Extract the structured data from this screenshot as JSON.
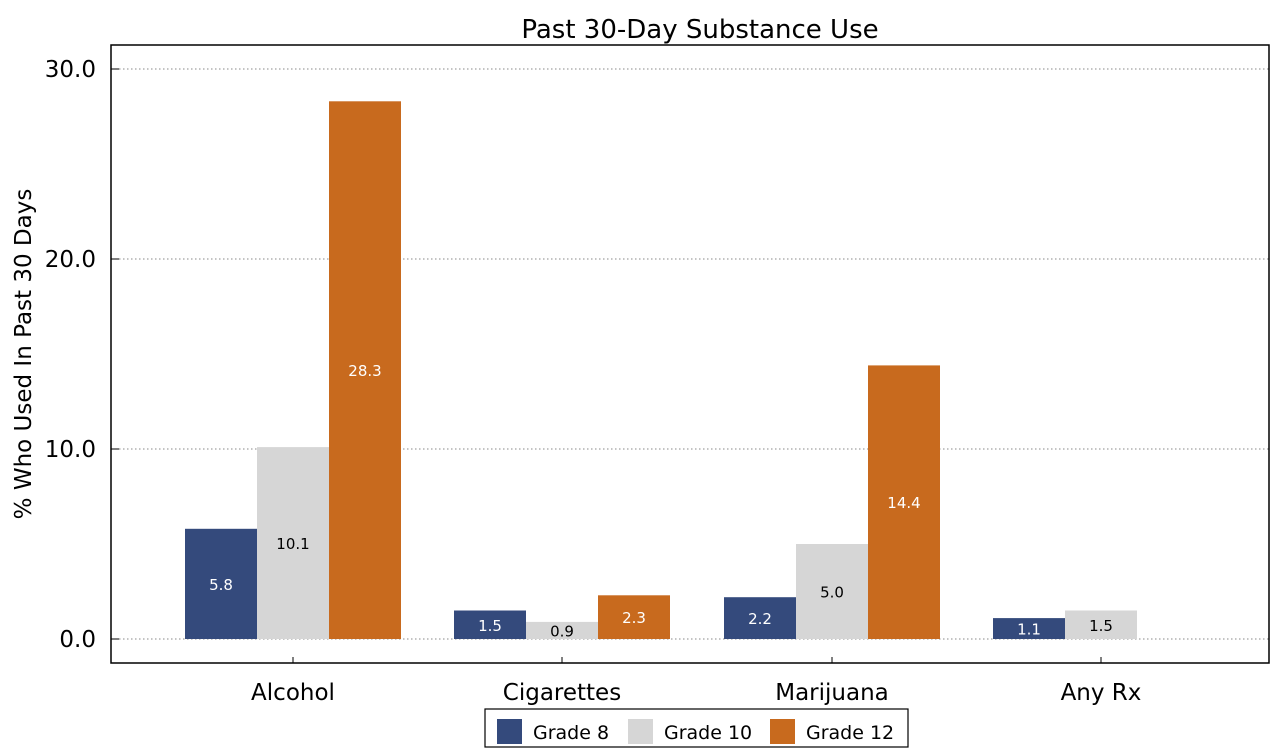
{
  "chart_data": {
    "type": "bar",
    "title": "Past 30-Day Substance Use",
    "xlabel": "",
    "ylabel": "% Who Used In Past 30 Days",
    "ylim": [
      0,
      31.3
    ],
    "yticks": [
      "0.0",
      "10.0",
      "20.0",
      "30.0"
    ],
    "ytick_values": [
      0,
      10,
      20,
      30
    ],
    "grid": true,
    "legend_position": "bottom-center",
    "categories": [
      "Alcohol",
      "Cigarettes",
      "Marijuana",
      "Any Rx"
    ],
    "series": [
      {
        "name": "Grade 8",
        "color": "#344a7c",
        "label_color": "#ffffff",
        "values": [
          5.8,
          1.5,
          2.2,
          1.1
        ],
        "labels": [
          "5.8",
          "1.5",
          "2.2",
          "1.1"
        ]
      },
      {
        "name": "Grade 10",
        "color": "#d6d6d6",
        "label_color": "#000000",
        "values": [
          10.1,
          0.9,
          5.0,
          1.5
        ],
        "labels": [
          "10.1",
          "0.9",
          "5.0",
          "1.5"
        ]
      },
      {
        "name": "Grade 12",
        "color": "#c86a1e",
        "label_color": "#ffffff",
        "values": [
          28.3,
          2.3,
          14.4,
          null
        ],
        "labels": [
          "28.3",
          "2.3",
          "14.4",
          ""
        ]
      }
    ]
  }
}
